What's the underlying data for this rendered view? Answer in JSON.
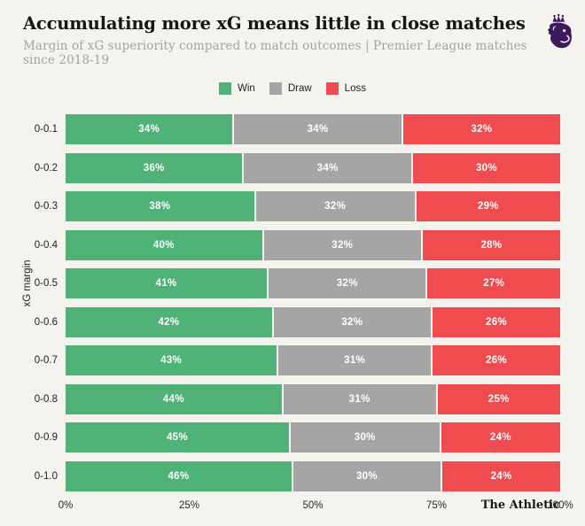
{
  "header": {
    "title": "Accumulating more xG means little in close matches",
    "subtitle": "Margin of xG superiority compared to match outcomes | Premier League matches since 2018-19"
  },
  "colors": {
    "background": "#f4f3ee",
    "win": "#4fb378",
    "draw": "#a5a5a5",
    "loss": "#f04b4e",
    "logo_purple": "#3d195b"
  },
  "footer": {
    "source": "The Athletic"
  },
  "chart_data": {
    "type": "bar",
    "orientation": "horizontal",
    "stacked": true,
    "title": "Accumulating more xG means little in close matches",
    "subtitle": "Margin of xG superiority compared to match outcomes | Premier League matches since 2018-19",
    "ylabel": "xG margin",
    "xlabel": "",
    "xlim": [
      0,
      100
    ],
    "x_ticks": [
      "0%",
      "25%",
      "50%",
      "75%",
      "100%"
    ],
    "x_tick_positions": [
      0,
      25,
      50,
      75,
      100
    ],
    "legend_position": "top-center",
    "grid": false,
    "value_suffix": "%",
    "categories": [
      "0-0.1",
      "0-0.2",
      "0-0.3",
      "0-0.4",
      "0-0.5",
      "0-0.6",
      "0-0.7",
      "0-0.8",
      "0-0.9",
      "0-1.0"
    ],
    "series": [
      {
        "name": "Win",
        "color": "#4fb378",
        "values": [
          34,
          36,
          38,
          40,
          41,
          42,
          43,
          44,
          45,
          46
        ]
      },
      {
        "name": "Draw",
        "color": "#a5a5a5",
        "values": [
          34,
          34,
          32,
          32,
          32,
          32,
          31,
          31,
          30,
          30
        ]
      },
      {
        "name": "Loss",
        "color": "#f04b4e",
        "values": [
          32,
          30,
          29,
          28,
          27,
          26,
          26,
          25,
          24,
          24
        ]
      }
    ]
  }
}
